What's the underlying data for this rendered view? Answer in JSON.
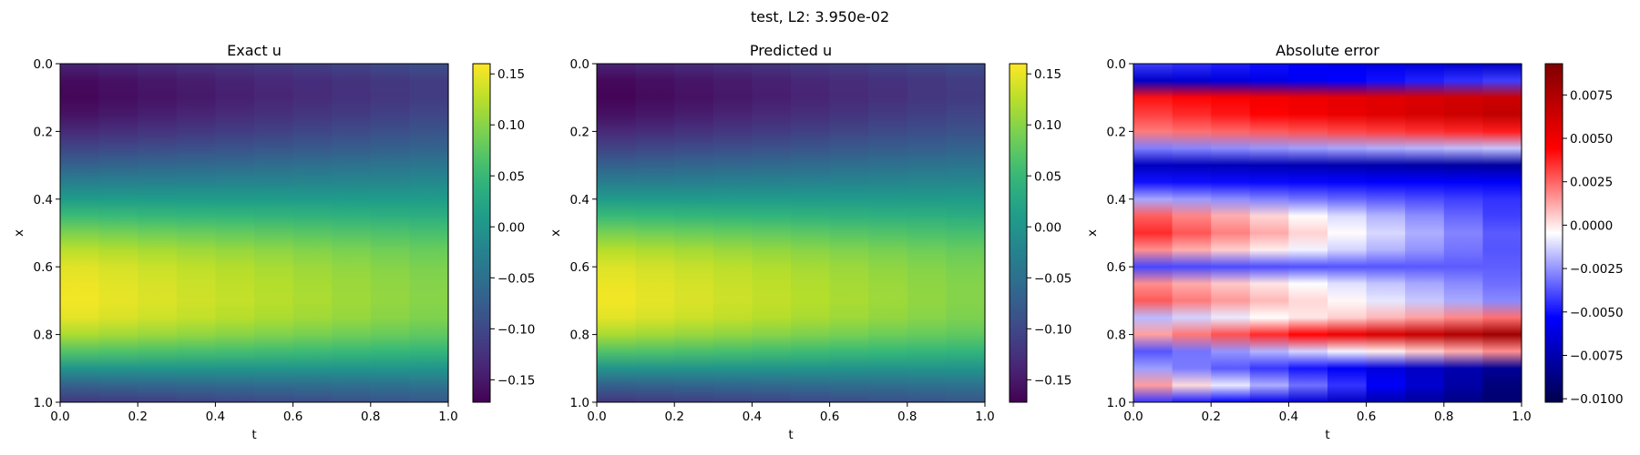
{
  "suptitle": "test, L2: 3.950e-02",
  "chart_data": [
    {
      "type": "heatmap",
      "title": "Exact u",
      "xlabel": "t",
      "ylabel": "x",
      "xlim": [
        0.0,
        1.0
      ],
      "ylim": [
        1.0,
        0.0
      ],
      "xticks": [
        "0.0",
        "0.2",
        "0.4",
        "0.6",
        "0.8",
        "1.0"
      ],
      "yticks": [
        "0.0",
        "0.2",
        "0.4",
        "0.6",
        "0.8",
        "1.0"
      ],
      "colormap": "viridis",
      "colorbar": {
        "range": [
          -0.172,
          0.16
        ],
        "ticks": [
          0.15,
          0.1,
          0.05,
          0.0,
          -0.05,
          -0.1,
          -0.15
        ],
        "tick_labels": [
          "0.15",
          "0.10",
          "0.05",
          "0.00",
          "−0.05",
          "−0.10",
          "−0.15"
        ]
      },
      "grid": false,
      "profile_x": [
        0.0,
        0.05,
        0.1,
        0.15,
        0.2,
        0.25,
        0.3,
        0.35,
        0.4,
        0.45,
        0.5,
        0.55,
        0.6,
        0.65,
        0.7,
        0.75,
        0.8,
        0.85,
        0.9,
        0.95,
        1.0
      ],
      "values_t0": [
        -0.14,
        -0.165,
        -0.17,
        -0.158,
        -0.135,
        -0.105,
        -0.07,
        -0.03,
        0.01,
        0.055,
        0.095,
        0.128,
        0.148,
        0.155,
        0.158,
        0.15,
        0.12,
        0.07,
        0.0,
        -0.07,
        -0.12
      ],
      "values_t1": [
        -0.09,
        -0.11,
        -0.11,
        -0.1,
        -0.085,
        -0.065,
        -0.04,
        -0.015,
        0.01,
        0.035,
        0.06,
        0.08,
        0.09,
        0.095,
        0.096,
        0.092,
        0.075,
        0.045,
        0.0,
        -0.045,
        -0.08
      ]
    },
    {
      "type": "heatmap",
      "title": "Predicted u",
      "xlabel": "t",
      "ylabel": "x",
      "xlim": [
        0.0,
        1.0
      ],
      "ylim": [
        1.0,
        0.0
      ],
      "xticks": [
        "0.0",
        "0.2",
        "0.4",
        "0.6",
        "0.8",
        "1.0"
      ],
      "yticks": [
        "0.0",
        "0.2",
        "0.4",
        "0.6",
        "0.8",
        "1.0"
      ],
      "colormap": "viridis",
      "colorbar": {
        "range": [
          -0.172,
          0.16
        ],
        "ticks": [
          0.15,
          0.1,
          0.05,
          0.0,
          -0.05,
          -0.1,
          -0.15
        ],
        "tick_labels": [
          "0.15",
          "0.10",
          "0.05",
          "0.00",
          "−0.05",
          "−0.10",
          "−0.15"
        ]
      },
      "grid": false,
      "profile_x": [
        0.0,
        0.05,
        0.1,
        0.15,
        0.2,
        0.25,
        0.3,
        0.35,
        0.4,
        0.45,
        0.5,
        0.55,
        0.6,
        0.65,
        0.7,
        0.75,
        0.8,
        0.85,
        0.9,
        0.95,
        1.0
      ],
      "values_t0": [
        -0.142,
        -0.167,
        -0.172,
        -0.16,
        -0.137,
        -0.107,
        -0.072,
        -0.032,
        0.008,
        0.053,
        0.093,
        0.126,
        0.146,
        0.154,
        0.157,
        0.149,
        0.119,
        0.069,
        -0.001,
        -0.071,
        -0.121
      ],
      "values_t1": [
        -0.091,
        -0.111,
        -0.111,
        -0.101,
        -0.086,
        -0.066,
        -0.041,
        -0.016,
        0.009,
        0.034,
        0.059,
        0.079,
        0.089,
        0.094,
        0.095,
        0.091,
        0.074,
        0.044,
        -0.001,
        -0.046,
        -0.081
      ]
    },
    {
      "type": "heatmap",
      "title": "Absolute error",
      "xlabel": "t",
      "ylabel": "x",
      "xlim": [
        0.0,
        1.0
      ],
      "ylim": [
        1.0,
        0.0
      ],
      "xticks": [
        "0.0",
        "0.2",
        "0.4",
        "0.6",
        "0.8",
        "1.0"
      ],
      "yticks": [
        "0.0",
        "0.2",
        "0.4",
        "0.6",
        "0.8",
        "1.0"
      ],
      "colormap": "seismic",
      "colorbar": {
        "range": [
          -0.0102,
          0.0093
        ],
        "ticks": [
          0.0075,
          0.005,
          0.0025,
          0.0,
          -0.0025,
          -0.005,
          -0.0075,
          -0.01
        ],
        "tick_labels": [
          "0.0075",
          "0.0050",
          "0.0025",
          "0.0000",
          "−0.0025",
          "−0.0050",
          "−0.0075",
          "−0.0100"
        ]
      },
      "grid": false,
      "profile_x": [
        0.0,
        0.05,
        0.1,
        0.15,
        0.2,
        0.25,
        0.3,
        0.35,
        0.4,
        0.45,
        0.5,
        0.55,
        0.6,
        0.65,
        0.7,
        0.75,
        0.8,
        0.85,
        0.9,
        0.95,
        1.0
      ],
      "values_t0": [
        -0.004,
        -0.007,
        0.004,
        0.003,
        0.002,
        -0.003,
        -0.007,
        -0.005,
        -0.002,
        0.003,
        0.004,
        0.002,
        -0.004,
        0.002,
        0.003,
        -0.002,
        0.001,
        -0.004,
        -0.002,
        0.002,
        -0.004
      ],
      "values_t1": [
        -0.007,
        -0.004,
        0.0065,
        0.007,
        0.004,
        -0.0015,
        -0.008,
        -0.0055,
        -0.0045,
        -0.0045,
        -0.004,
        -0.004,
        -0.0035,
        -0.0035,
        -0.003,
        0.0025,
        0.0085,
        0.002,
        -0.0085,
        -0.0095,
        -0.0095
      ]
    }
  ]
}
